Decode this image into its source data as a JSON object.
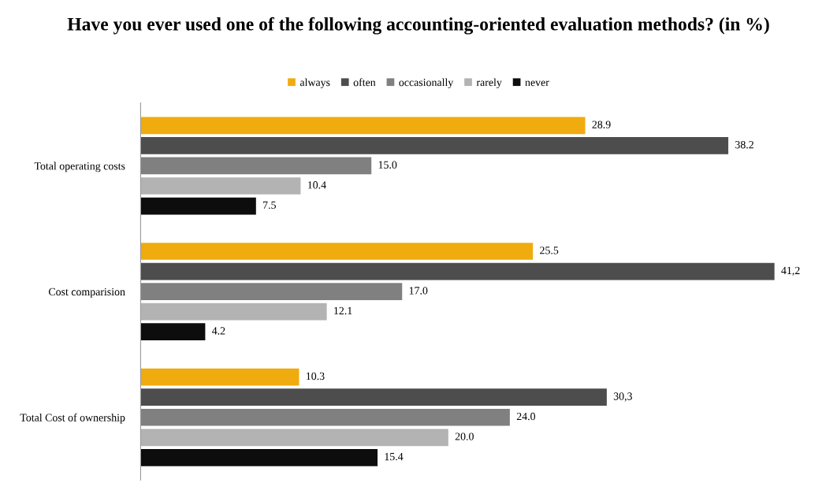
{
  "chart_data": {
    "type": "bar",
    "orientation": "horizontal",
    "title": "Have you ever used one of the following accounting-oriented evaluation methods? (in %)",
    "categories": [
      "Total operating costs",
      "Cost comparision",
      "Total Cost of ownership"
    ],
    "series": [
      {
        "name": "always",
        "color": "#f0ab0f",
        "values": [
          28.9,
          25.5,
          10.3
        ],
        "value_labels": [
          "28.9",
          "25.5",
          "10.3"
        ]
      },
      {
        "name": "often",
        "color": "#4d4d4d",
        "values": [
          38.2,
          41.2,
          30.3
        ],
        "value_labels": [
          "38.2",
          "41,2",
          "30,3"
        ]
      },
      {
        "name": "occasionally",
        "color": "#808080",
        "values": [
          15.0,
          17.0,
          24.0
        ],
        "value_labels": [
          "15.0",
          "17.0",
          "24.0"
        ]
      },
      {
        "name": "rarely",
        "color": "#b3b3b3",
        "values": [
          10.4,
          12.1,
          20.0
        ],
        "value_labels": [
          "10.4",
          "12.1",
          "20.0"
        ]
      },
      {
        "name": "never",
        "color": "#0d0d0d",
        "values": [
          7.5,
          4.2,
          15.4
        ],
        "value_labels": [
          "7.5",
          "4.2",
          "15.4"
        ]
      }
    ],
    "legend": "top"
  }
}
